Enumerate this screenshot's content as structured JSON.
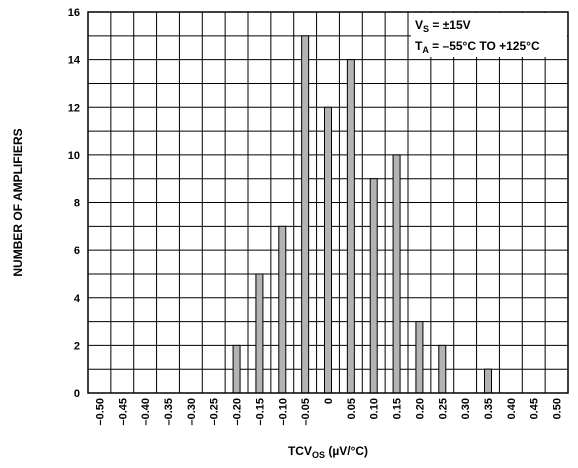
{
  "chart_data": {
    "type": "bar",
    "title": "",
    "xlabel_main": "TCV",
    "xlabel_sub": "OS",
    "xlabel_unit": " (µV/°C)",
    "ylabel": "NUMBER OF AMPLIFIERS",
    "categories": [
      "–0.50",
      "–0.45",
      "–0.40",
      "–0.35",
      "–0.30",
      "–0.25",
      "–0.20",
      "–0.15",
      "–0.10",
      "–0.05",
      "0",
      "0.05",
      "0.10",
      "0.15",
      "0.20",
      "0.25",
      "0.30",
      "0.35",
      "0.40",
      "0.45",
      "0.50"
    ],
    "values": [
      0,
      0,
      0,
      0,
      0,
      0,
      2,
      5,
      7,
      15,
      12,
      14,
      9,
      10,
      3,
      2,
      0,
      1,
      0,
      0,
      0
    ],
    "ylim": [
      0,
      16
    ],
    "yticks": [
      "0",
      "2",
      "4",
      "6",
      "8",
      "10",
      "12",
      "14",
      "16"
    ],
    "grid": true,
    "bar_color": "#b3b3b3",
    "annotations": {
      "line1": {
        "main": "V",
        "sub": "S",
        "rest": " = ±15V"
      },
      "line2": {
        "main": "T",
        "sub": "A",
        "rest": " = –55°C TO +125°C"
      }
    }
  }
}
